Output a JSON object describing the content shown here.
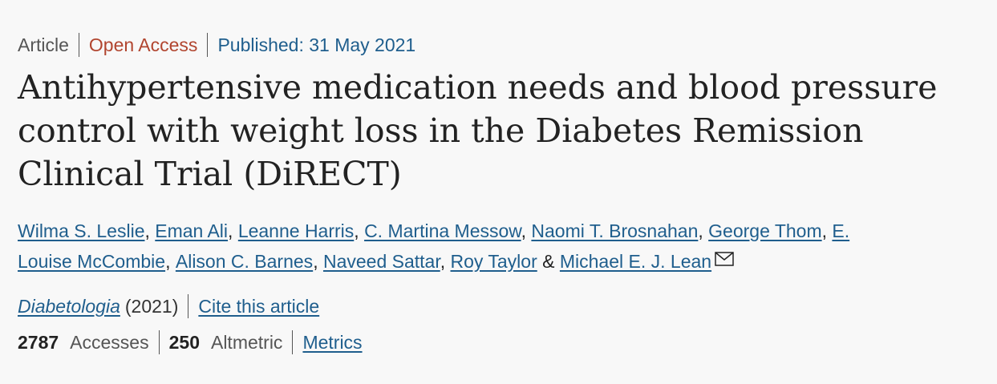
{
  "header": {
    "article_type": "Article",
    "access": "Open Access",
    "published": "Published: 31 May 2021"
  },
  "title": "Antihypertensive medication needs and blood pressure control with weight loss in the Diabetes Remission Clinical Trial (DiRECT)",
  "authors": [
    {
      "name": "Wilma S. Leslie",
      "sep": ", "
    },
    {
      "name": "Eman Ali",
      "sep": ", "
    },
    {
      "name": "Leanne Harris",
      "sep": ", "
    },
    {
      "name": "C. Martina Messow",
      "sep": ", "
    },
    {
      "name": "Naomi T. Brosnahan",
      "sep": ", "
    },
    {
      "name": "George Thom",
      "sep": ", "
    },
    {
      "name": "E. Louise McCombie",
      "sep": ", "
    },
    {
      "name": "Alison C. Barnes",
      "sep": ", "
    },
    {
      "name": "Naveed Sattar",
      "sep": ", "
    },
    {
      "name": "Roy Taylor",
      "sep": " & "
    },
    {
      "name": "Michael E. J. Lean",
      "sep": ""
    }
  ],
  "corresponding_icon": "mail-icon",
  "journal": {
    "name": "Diabetologia",
    "year": "(2021)",
    "cite_label": "Cite this article"
  },
  "metrics": {
    "accesses_count": "2787",
    "accesses_label": "Accesses",
    "altmetric_count": "250",
    "altmetric_label": "Altmetric",
    "metrics_link": "Metrics"
  },
  "colors": {
    "background": "#f8f8f8",
    "link": "#1f5e8d",
    "open_access": "#b1452f",
    "text": "#222222",
    "muted": "#555555"
  }
}
